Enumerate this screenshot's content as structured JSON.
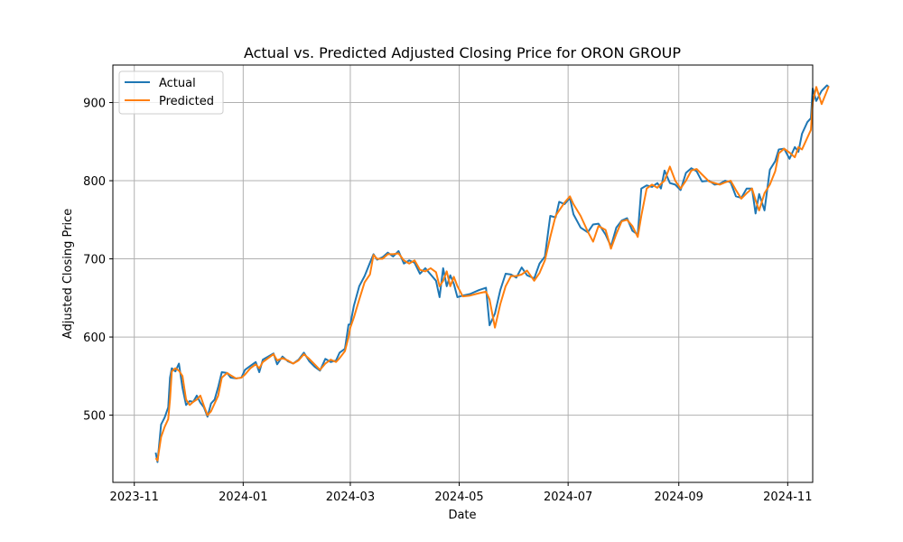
{
  "chart_data": {
    "type": "line",
    "title": "Actual vs. Predicted Adjusted Closing Price for ORON GROUP",
    "xlabel": "Date",
    "ylabel": "Adjusted Closing Price",
    "x_ticks": [
      "2023-11",
      "2024-01",
      "2024-03",
      "2024-05",
      "2024-07",
      "2024-09",
      "2024-11"
    ],
    "y_ticks": [
      500,
      600,
      700,
      800,
      900
    ],
    "xlim": [
      "2023-10-20",
      "2024-11-15"
    ],
    "ylim": [
      414,
      948
    ],
    "grid": true,
    "legend_position": "upper-left",
    "series": [
      {
        "name": "Actual",
        "color": "#1f77b4",
        "points": [
          [
            "2023-11-13",
            452
          ],
          [
            "2023-11-14",
            440
          ],
          [
            "2023-11-16",
            488
          ],
          [
            "2023-11-18",
            497
          ],
          [
            "2023-11-20",
            510
          ],
          [
            "2023-11-21",
            548
          ],
          [
            "2023-11-22",
            560
          ],
          [
            "2023-11-24",
            556
          ],
          [
            "2023-11-26",
            566
          ],
          [
            "2023-11-28",
            535
          ],
          [
            "2023-11-30",
            513
          ],
          [
            "2023-12-02",
            518
          ],
          [
            "2023-12-04",
            517
          ],
          [
            "2023-12-06",
            525
          ],
          [
            "2023-12-08",
            516
          ],
          [
            "2023-12-10",
            510
          ],
          [
            "2023-12-12",
            498
          ],
          [
            "2023-12-14",
            515
          ],
          [
            "2023-12-16",
            520
          ],
          [
            "2023-12-18",
            536
          ],
          [
            "2023-12-20",
            555
          ],
          [
            "2023-12-23",
            554
          ],
          [
            "2023-12-25",
            548
          ],
          [
            "2023-12-28",
            547
          ],
          [
            "2023-12-31",
            548
          ],
          [
            "2024-01-02",
            558
          ],
          [
            "2024-01-05",
            563
          ],
          [
            "2024-01-08",
            568
          ],
          [
            "2024-01-10",
            555
          ],
          [
            "2024-01-12",
            571
          ],
          [
            "2024-01-15",
            575
          ],
          [
            "2024-01-18",
            579
          ],
          [
            "2024-01-20",
            565
          ],
          [
            "2024-01-23",
            575
          ],
          [
            "2024-01-26",
            569
          ],
          [
            "2024-01-29",
            566
          ],
          [
            "2024-02-01",
            571
          ],
          [
            "2024-02-04",
            580
          ],
          [
            "2024-02-07",
            569
          ],
          [
            "2024-02-10",
            562
          ],
          [
            "2024-02-13",
            557
          ],
          [
            "2024-02-16",
            572
          ],
          [
            "2024-02-19",
            568
          ],
          [
            "2024-02-22",
            570
          ],
          [
            "2024-02-24",
            580
          ],
          [
            "2024-02-27",
            585
          ],
          [
            "2024-02-29",
            616
          ],
          [
            "2024-03-01",
            616
          ],
          [
            "2024-03-03",
            640
          ],
          [
            "2024-03-06",
            665
          ],
          [
            "2024-03-09",
            678
          ],
          [
            "2024-03-12",
            695
          ],
          [
            "2024-03-14",
            706
          ],
          [
            "2024-03-16",
            699
          ],
          [
            "2024-03-19",
            702
          ],
          [
            "2024-03-22",
            708
          ],
          [
            "2024-03-25",
            703
          ],
          [
            "2024-03-28",
            710
          ],
          [
            "2024-03-31",
            694
          ],
          [
            "2024-04-03",
            698
          ],
          [
            "2024-04-06",
            695
          ],
          [
            "2024-04-09",
            681
          ],
          [
            "2024-04-12",
            688
          ],
          [
            "2024-04-15",
            680
          ],
          [
            "2024-04-18",
            672
          ],
          [
            "2024-04-20",
            651
          ],
          [
            "2024-04-22",
            688
          ],
          [
            "2024-04-24",
            665
          ],
          [
            "2024-04-26",
            679
          ],
          [
            "2024-04-28",
            668
          ],
          [
            "2024-04-30",
            651
          ],
          [
            "2024-05-03",
            653
          ],
          [
            "2024-05-07",
            655
          ],
          [
            "2024-05-12",
            660
          ],
          [
            "2024-05-16",
            663
          ],
          [
            "2024-05-18",
            615
          ],
          [
            "2024-05-21",
            630
          ],
          [
            "2024-05-24",
            660
          ],
          [
            "2024-05-27",
            681
          ],
          [
            "2024-05-30",
            680
          ],
          [
            "2024-06-02",
            676
          ],
          [
            "2024-06-05",
            689
          ],
          [
            "2024-06-08",
            679
          ],
          [
            "2024-06-12",
            675
          ],
          [
            "2024-06-15",
            694
          ],
          [
            "2024-06-18",
            703
          ],
          [
            "2024-06-21",
            755
          ],
          [
            "2024-06-24",
            753
          ],
          [
            "2024-06-26",
            773
          ],
          [
            "2024-06-29",
            770
          ],
          [
            "2024-07-02",
            778
          ],
          [
            "2024-07-04",
            757
          ],
          [
            "2024-07-08",
            740
          ],
          [
            "2024-07-12",
            734
          ],
          [
            "2024-07-15",
            744
          ],
          [
            "2024-07-18",
            745
          ],
          [
            "2024-07-22",
            731
          ],
          [
            "2024-07-25",
            716
          ],
          [
            "2024-07-28",
            740
          ],
          [
            "2024-07-31",
            749
          ],
          [
            "2024-08-03",
            752
          ],
          [
            "2024-08-06",
            736
          ],
          [
            "2024-08-09",
            731
          ],
          [
            "2024-08-11",
            790
          ],
          [
            "2024-08-14",
            794
          ],
          [
            "2024-08-17",
            792
          ],
          [
            "2024-08-20",
            797
          ],
          [
            "2024-08-22",
            790
          ],
          [
            "2024-08-24",
            813
          ],
          [
            "2024-08-27",
            797
          ],
          [
            "2024-08-30",
            795
          ],
          [
            "2024-09-02",
            788
          ],
          [
            "2024-09-05",
            810
          ],
          [
            "2024-09-08",
            816
          ],
          [
            "2024-09-11",
            812
          ],
          [
            "2024-09-14",
            799
          ],
          [
            "2024-09-18",
            800
          ],
          [
            "2024-09-21",
            795
          ],
          [
            "2024-09-24",
            796
          ],
          [
            "2024-09-27",
            800
          ],
          [
            "2024-09-30",
            798
          ],
          [
            "2024-10-03",
            780
          ],
          [
            "2024-10-06",
            778
          ],
          [
            "2024-10-09",
            790
          ],
          [
            "2024-10-12",
            790
          ],
          [
            "2024-10-14",
            758
          ],
          [
            "2024-10-16",
            783
          ],
          [
            "2024-10-19",
            762
          ],
          [
            "2024-10-22",
            814
          ],
          [
            "2024-10-25",
            825
          ],
          [
            "2024-10-27",
            840
          ],
          [
            "2024-10-30",
            841
          ],
          [
            "2024-11-02",
            828
          ],
          [
            "2024-11-05",
            843
          ],
          [
            "2024-11-07",
            837
          ],
          [
            "2024-11-09",
            860
          ],
          [
            "2024-11-12",
            875
          ],
          [
            "2024-11-14",
            880
          ],
          [
            "2024-11-15",
            918
          ],
          [
            "2024-11-17",
            902
          ],
          [
            "2024-11-20",
            915
          ],
          [
            "2024-11-23",
            922
          ],
          [
            "2024-11-24",
            920
          ]
        ]
      },
      {
        "name": "Predicted",
        "color": "#ff7f0e",
        "points": [
          [
            "2023-11-13",
            445
          ],
          [
            "2023-11-14",
            442
          ],
          [
            "2023-11-16",
            472
          ],
          [
            "2023-11-18",
            485
          ],
          [
            "2023-11-20",
            495
          ],
          [
            "2023-11-21",
            520
          ],
          [
            "2023-11-22",
            556
          ],
          [
            "2023-11-24",
            560
          ],
          [
            "2023-11-26",
            557
          ],
          [
            "2023-11-28",
            550
          ],
          [
            "2023-11-30",
            520
          ],
          [
            "2023-12-02",
            513
          ],
          [
            "2023-12-04",
            517
          ],
          [
            "2023-12-06",
            520
          ],
          [
            "2023-12-08",
            525
          ],
          [
            "2023-12-10",
            512
          ],
          [
            "2023-12-12",
            500
          ],
          [
            "2023-12-14",
            505
          ],
          [
            "2023-12-16",
            515
          ],
          [
            "2023-12-18",
            525
          ],
          [
            "2023-12-20",
            548
          ],
          [
            "2023-12-23",
            554
          ],
          [
            "2023-12-25",
            551
          ],
          [
            "2023-12-28",
            547
          ],
          [
            "2023-12-31",
            548
          ],
          [
            "2024-01-02",
            552
          ],
          [
            "2024-01-05",
            560
          ],
          [
            "2024-01-08",
            565
          ],
          [
            "2024-01-10",
            560
          ],
          [
            "2024-01-12",
            568
          ],
          [
            "2024-01-15",
            573
          ],
          [
            "2024-01-18",
            578
          ],
          [
            "2024-01-20",
            570
          ],
          [
            "2024-01-23",
            573
          ],
          [
            "2024-01-26",
            570
          ],
          [
            "2024-01-29",
            566
          ],
          [
            "2024-02-01",
            570
          ],
          [
            "2024-02-04",
            578
          ],
          [
            "2024-02-07",
            572
          ],
          [
            "2024-02-10",
            565
          ],
          [
            "2024-02-13",
            558
          ],
          [
            "2024-02-16",
            566
          ],
          [
            "2024-02-19",
            571
          ],
          [
            "2024-02-22",
            568
          ],
          [
            "2024-02-24",
            573
          ],
          [
            "2024-02-27",
            582
          ],
          [
            "2024-02-29",
            600
          ],
          [
            "2024-03-01",
            612
          ],
          [
            "2024-03-03",
            625
          ],
          [
            "2024-03-06",
            648
          ],
          [
            "2024-03-09",
            670
          ],
          [
            "2024-03-12",
            680
          ],
          [
            "2024-03-14",
            705
          ],
          [
            "2024-03-16",
            700
          ],
          [
            "2024-03-19",
            700
          ],
          [
            "2024-03-22",
            706
          ],
          [
            "2024-03-25",
            706
          ],
          [
            "2024-03-28",
            707
          ],
          [
            "2024-03-31",
            698
          ],
          [
            "2024-04-03",
            694
          ],
          [
            "2024-04-06",
            698
          ],
          [
            "2024-04-09",
            686
          ],
          [
            "2024-04-12",
            684
          ],
          [
            "2024-04-15",
            688
          ],
          [
            "2024-04-18",
            683
          ],
          [
            "2024-04-20",
            665
          ],
          [
            "2024-04-22",
            672
          ],
          [
            "2024-04-24",
            684
          ],
          [
            "2024-04-26",
            665
          ],
          [
            "2024-04-28",
            677
          ],
          [
            "2024-04-30",
            665
          ],
          [
            "2024-05-03",
            652
          ],
          [
            "2024-05-07",
            653
          ],
          [
            "2024-05-12",
            656
          ],
          [
            "2024-05-16",
            658
          ],
          [
            "2024-05-18",
            648
          ],
          [
            "2024-05-21",
            612
          ],
          [
            "2024-05-24",
            642
          ],
          [
            "2024-05-27",
            665
          ],
          [
            "2024-05-30",
            678
          ],
          [
            "2024-06-02",
            678
          ],
          [
            "2024-06-05",
            680
          ],
          [
            "2024-06-08",
            685
          ],
          [
            "2024-06-12",
            672
          ],
          [
            "2024-06-15",
            682
          ],
          [
            "2024-06-18",
            698
          ],
          [
            "2024-06-21",
            728
          ],
          [
            "2024-06-24",
            755
          ],
          [
            "2024-06-26",
            762
          ],
          [
            "2024-06-29",
            772
          ],
          [
            "2024-07-02",
            780
          ],
          [
            "2024-07-04",
            770
          ],
          [
            "2024-07-08",
            755
          ],
          [
            "2024-07-12",
            735
          ],
          [
            "2024-07-15",
            722
          ],
          [
            "2024-07-18",
            742
          ],
          [
            "2024-07-22",
            737
          ],
          [
            "2024-07-25",
            713
          ],
          [
            "2024-07-28",
            732
          ],
          [
            "2024-07-31",
            748
          ],
          [
            "2024-08-03",
            750
          ],
          [
            "2024-08-06",
            742
          ],
          [
            "2024-08-09",
            728
          ],
          [
            "2024-08-11",
            755
          ],
          [
            "2024-08-14",
            790
          ],
          [
            "2024-08-17",
            795
          ],
          [
            "2024-08-20",
            791
          ],
          [
            "2024-08-22",
            796
          ],
          [
            "2024-08-24",
            800
          ],
          [
            "2024-08-27",
            818
          ],
          [
            "2024-08-30",
            800
          ],
          [
            "2024-09-02",
            790
          ],
          [
            "2024-09-05",
            800
          ],
          [
            "2024-09-08",
            813
          ],
          [
            "2024-09-11",
            815
          ],
          [
            "2024-09-14",
            808
          ],
          [
            "2024-09-18",
            799
          ],
          [
            "2024-09-21",
            797
          ],
          [
            "2024-09-24",
            795
          ],
          [
            "2024-09-27",
            798
          ],
          [
            "2024-09-30",
            800
          ],
          [
            "2024-10-03",
            788
          ],
          [
            "2024-10-06",
            777
          ],
          [
            "2024-10-09",
            784
          ],
          [
            "2024-10-12",
            790
          ],
          [
            "2024-10-14",
            775
          ],
          [
            "2024-10-16",
            762
          ],
          [
            "2024-10-19",
            784
          ],
          [
            "2024-10-22",
            795
          ],
          [
            "2024-10-25",
            812
          ],
          [
            "2024-10-27",
            835
          ],
          [
            "2024-10-30",
            841
          ],
          [
            "2024-11-02",
            836
          ],
          [
            "2024-11-05",
            830
          ],
          [
            "2024-11-07",
            843
          ],
          [
            "2024-11-09",
            840
          ],
          [
            "2024-11-12",
            855
          ],
          [
            "2024-11-14",
            865
          ],
          [
            "2024-11-15",
            900
          ],
          [
            "2024-11-17",
            920
          ],
          [
            "2024-11-20",
            898
          ],
          [
            "2024-11-23",
            915
          ],
          [
            "2024-11-24",
            921
          ]
        ]
      }
    ]
  }
}
